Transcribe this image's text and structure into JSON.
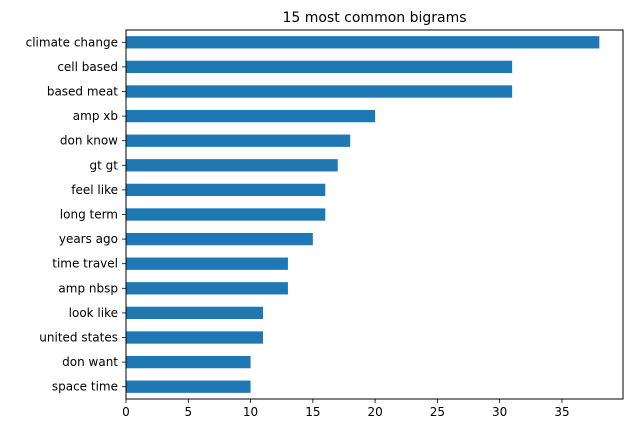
{
  "chart_data": {
    "type": "bar",
    "orientation": "horizontal",
    "title": "15 most common bigrams",
    "xlabel": "",
    "ylabel": "",
    "categories": [
      "climate change",
      "cell based",
      "based meat",
      "amp xb",
      "don know",
      "gt gt",
      "feel like",
      "long term",
      "years ago",
      "time travel",
      "amp nbsp",
      "look like",
      "united states",
      "don want",
      "space time"
    ],
    "values": [
      38,
      31,
      31,
      20,
      18,
      17,
      16,
      16,
      15,
      13,
      13,
      11,
      11,
      10,
      10
    ],
    "xlim": [
      0,
      39.9
    ],
    "xticks": [
      0,
      5,
      10,
      15,
      20,
      25,
      30,
      35
    ],
    "grid": false,
    "legend": "none",
    "bar_color": "#1f77b4",
    "axis_color": "#000000"
  }
}
